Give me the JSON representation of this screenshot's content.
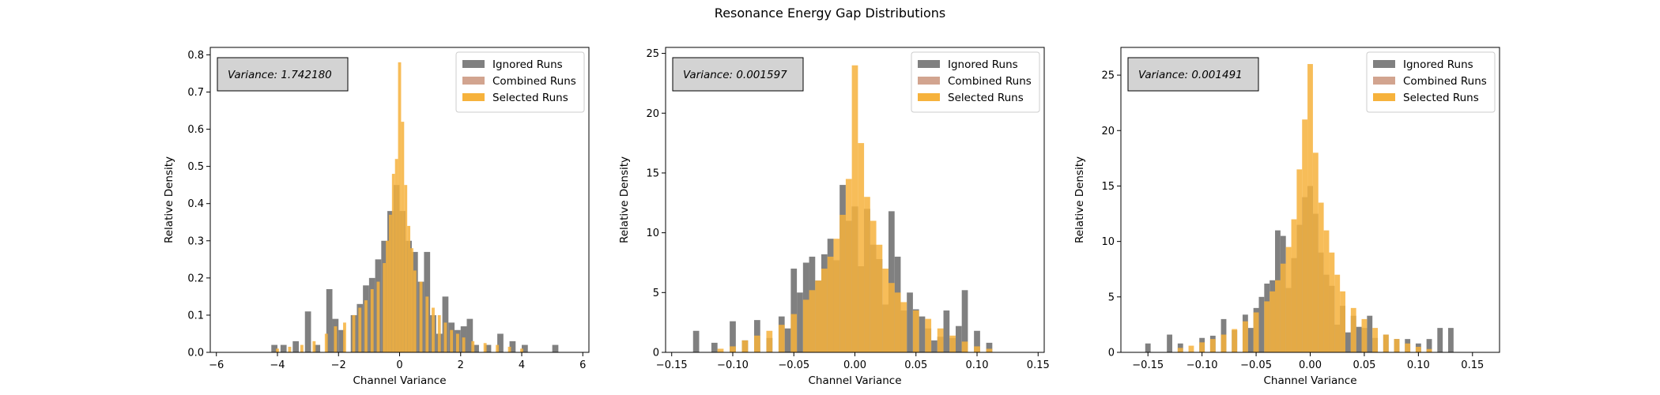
{
  "figure": {
    "title": "Resonance Energy Gap Distributions",
    "legend_labels": [
      "Ignored Runs",
      "Combined Runs",
      "Selected Runs"
    ],
    "colors": {
      "ignored": "#808080",
      "combined": "#d2a48f",
      "selected": "#f6b23c",
      "overlap": "#e69a12"
    }
  },
  "chart_data": [
    {
      "type": "bar",
      "annotation": "Variance: 1.742180",
      "xlabel": "Channel Variance",
      "ylabel": "Relative Density",
      "xlim": [
        -6.2,
        6.2
      ],
      "ylim": [
        0,
        0.82
      ],
      "xticks": [
        -6,
        -4,
        -2,
        0,
        2,
        4,
        6
      ],
      "xtick_labels": [
        "−6",
        "−4",
        "−2",
        "0",
        "2",
        "4",
        "6"
      ],
      "yticks": [
        0,
        0.1,
        0.2,
        0.3,
        0.4,
        0.5,
        0.6,
        0.7,
        0.8
      ],
      "ytick_labels": [
        "0.0",
        "0.1",
        "0.2",
        "0.3",
        "0.4",
        "0.5",
        "0.6",
        "0.7",
        "0.8"
      ],
      "legend_position": "upper right",
      "grid": false,
      "series": [
        {
          "name": "Ignored Runs",
          "x": [
            -4.1,
            -3.8,
            -3.4,
            -3.0,
            -2.7,
            -2.3,
            -2.1,
            -1.9,
            -1.5,
            -1.3,
            -1.1,
            -0.9,
            -0.7,
            -0.5,
            -0.3,
            -0.1,
            0.1,
            0.3,
            0.5,
            0.7,
            0.9,
            1.1,
            1.3,
            1.5,
            1.7,
            1.9,
            2.1,
            2.3,
            2.5,
            2.9,
            3.3,
            3.7,
            4.1,
            5.1
          ],
          "y": [
            0.02,
            0.02,
            0.03,
            0.11,
            0.02,
            0.17,
            0.09,
            0.06,
            0.1,
            0.13,
            0.18,
            0.2,
            0.25,
            0.3,
            0.38,
            0.45,
            0.38,
            0.3,
            0.27,
            0.19,
            0.27,
            0.1,
            0.05,
            0.15,
            0.08,
            0.06,
            0.07,
            0.09,
            0.02,
            0.02,
            0.05,
            0.03,
            0.02,
            0.02
          ]
        },
        {
          "name": "Selected Runs",
          "x": [
            -4.0,
            -3.6,
            -3.2,
            -2.8,
            -2.4,
            -2.1,
            -1.8,
            -1.5,
            -1.3,
            -1.1,
            -0.9,
            -0.7,
            -0.5,
            -0.4,
            -0.3,
            -0.2,
            -0.1,
            0.0,
            0.1,
            0.2,
            0.3,
            0.4,
            0.5,
            0.7,
            0.9,
            1.1,
            1.3,
            1.5,
            1.7,
            1.9,
            2.1,
            2.4,
            2.8,
            3.2,
            3.6,
            4.0
          ],
          "y": [
            0.01,
            0.015,
            0.02,
            0.03,
            0.05,
            0.07,
            0.08,
            0.1,
            0.12,
            0.14,
            0.17,
            0.19,
            0.24,
            0.3,
            0.37,
            0.48,
            0.52,
            0.78,
            0.62,
            0.45,
            0.34,
            0.28,
            0.22,
            0.19,
            0.15,
            0.12,
            0.1,
            0.08,
            0.06,
            0.05,
            0.04,
            0.03,
            0.025,
            0.02,
            0.015,
            0.01
          ]
        }
      ]
    },
    {
      "type": "bar",
      "annotation": "Variance: 0.001597",
      "xlabel": "Channel Variance",
      "ylabel": "Relative Density",
      "xlim": [
        -0.155,
        0.155
      ],
      "ylim": [
        0,
        25.5
      ],
      "xticks": [
        -0.15,
        -0.1,
        -0.05,
        0.0,
        0.05,
        0.1,
        0.15
      ],
      "xtick_labels": [
        "−0.15",
        "−0.10",
        "−0.05",
        "0.00",
        "0.05",
        "0.10",
        "0.15"
      ],
      "yticks": [
        0,
        5,
        10,
        15,
        20,
        25
      ],
      "ytick_labels": [
        "0",
        "5",
        "10",
        "15",
        "20",
        "25"
      ],
      "legend_position": "upper right",
      "grid": false,
      "series": [
        {
          "name": "Ignored Runs",
          "x": [
            -0.13,
            -0.115,
            -0.1,
            -0.09,
            -0.08,
            -0.07,
            -0.06,
            -0.055,
            -0.05,
            -0.045,
            -0.04,
            -0.035,
            -0.03,
            -0.025,
            -0.02,
            -0.015,
            -0.01,
            -0.005,
            0.0,
            0.005,
            0.01,
            0.015,
            0.02,
            0.025,
            0.03,
            0.035,
            0.04,
            0.045,
            0.05,
            0.055,
            0.06,
            0.065,
            0.07,
            0.075,
            0.08,
            0.085,
            0.09,
            0.1,
            0.11
          ],
          "y": [
            1.8,
            0.8,
            2.6,
            1.0,
            2.7,
            1.2,
            3.0,
            2.0,
            7.0,
            5.0,
            7.5,
            8.0,
            6.0,
            8.2,
            9.5,
            7.7,
            14.0,
            11.0,
            12.2,
            7.2,
            12.0,
            9.0,
            7.8,
            4.0,
            11.8,
            8.0,
            3.5,
            5.0,
            3.6,
            3.0,
            2.0,
            1.0,
            1.3,
            3.5,
            1.2,
            2.2,
            5.2,
            1.8,
            0.8
          ]
        },
        {
          "name": "Selected Runs",
          "x": [
            -0.11,
            -0.1,
            -0.09,
            -0.08,
            -0.07,
            -0.06,
            -0.05,
            -0.04,
            -0.035,
            -0.03,
            -0.025,
            -0.02,
            -0.015,
            -0.01,
            -0.005,
            0.0,
            0.005,
            0.01,
            0.015,
            0.02,
            0.025,
            0.03,
            0.035,
            0.04,
            0.05,
            0.06,
            0.07,
            0.08,
            0.09,
            0.1,
            0.11
          ],
          "y": [
            0.3,
            0.5,
            1.0,
            1.4,
            1.8,
            2.3,
            3.2,
            4.4,
            5.2,
            6.0,
            7.0,
            8.0,
            9.5,
            11.5,
            14.5,
            24.0,
            17.5,
            13.0,
            11.0,
            9.0,
            7.0,
            5.8,
            5.0,
            4.2,
            3.5,
            2.8,
            2.0,
            1.4,
            0.9,
            0.5,
            0.3
          ]
        }
      ]
    },
    {
      "type": "bar",
      "annotation": "Variance: 0.001491",
      "xlabel": "Channel Variance",
      "ylabel": "Relative Density",
      "xlim": [
        -0.175,
        0.175
      ],
      "ylim": [
        0,
        27.5
      ],
      "xticks": [
        -0.15,
        -0.1,
        -0.05,
        0.0,
        0.05,
        0.1,
        0.15
      ],
      "xtick_labels": [
        "−0.15",
        "−0.10",
        "−0.05",
        "0.00",
        "0.05",
        "0.10",
        "0.15"
      ],
      "yticks": [
        0,
        5,
        10,
        15,
        20,
        25
      ],
      "ytick_labels": [
        "0",
        "5",
        "10",
        "15",
        "20",
        "25"
      ],
      "legend_position": "upper right",
      "grid": false,
      "series": [
        {
          "name": "Ignored Runs",
          "x": [
            -0.15,
            -0.13,
            -0.12,
            -0.1,
            -0.09,
            -0.08,
            -0.07,
            -0.06,
            -0.055,
            -0.05,
            -0.045,
            -0.04,
            -0.035,
            -0.03,
            -0.025,
            -0.02,
            -0.015,
            -0.01,
            -0.005,
            0.0,
            0.005,
            0.01,
            0.015,
            0.02,
            0.025,
            0.03,
            0.035,
            0.04,
            0.045,
            0.05,
            0.055,
            0.06,
            0.07,
            0.08,
            0.09,
            0.1,
            0.11,
            0.12,
            0.13
          ],
          "y": [
            0.8,
            1.6,
            0.8,
            1.3,
            1.5,
            3.0,
            2.0,
            3.4,
            2.2,
            4.0,
            5.0,
            6.2,
            6.5,
            11.0,
            10.5,
            5.8,
            8.5,
            11.5,
            14.0,
            15.0,
            12.5,
            9.0,
            7.0,
            6.0,
            2.5,
            4.2,
            1.8,
            3.3,
            2.3,
            2.2,
            3.3,
            1.3,
            1.6,
            1.2,
            1.2,
            0.8,
            1.2,
            2.2,
            2.2
          ]
        },
        {
          "name": "Selected Runs",
          "x": [
            -0.12,
            -0.11,
            -0.1,
            -0.09,
            -0.08,
            -0.07,
            -0.06,
            -0.05,
            -0.04,
            -0.035,
            -0.03,
            -0.025,
            -0.02,
            -0.015,
            -0.01,
            -0.005,
            0.0,
            0.005,
            0.01,
            0.015,
            0.02,
            0.025,
            0.03,
            0.04,
            0.05,
            0.06,
            0.07,
            0.08,
            0.09,
            0.1,
            0.11
          ],
          "y": [
            0.4,
            0.6,
            0.9,
            1.2,
            1.6,
            2.1,
            2.8,
            3.6,
            4.6,
            5.5,
            6.5,
            8.0,
            9.5,
            12.0,
            16.5,
            21.0,
            26.0,
            18.0,
            13.5,
            11.0,
            9.0,
            7.0,
            5.5,
            4.0,
            3.0,
            2.2,
            1.6,
            1.2,
            0.8,
            0.5,
            0.3
          ]
        }
      ]
    }
  ]
}
